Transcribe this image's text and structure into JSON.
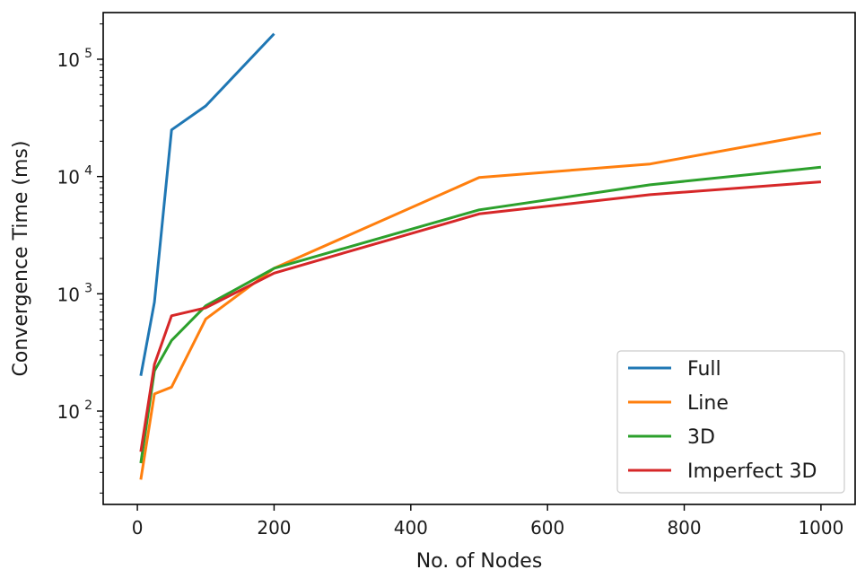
{
  "chart_data": {
    "type": "line",
    "title": "",
    "xlabel": "No. of Nodes",
    "ylabel": "Convergence Time (ms)",
    "xlim": [
      -50,
      1050
    ],
    "ylim": [
      16,
      250000
    ],
    "yscale": "log",
    "grid": false,
    "legend_position": "lower right",
    "x_ticks": [
      0,
      200,
      400,
      600,
      800,
      1000
    ],
    "x_tick_labels": [
      "0",
      "200",
      "400",
      "600",
      "800",
      "1000"
    ],
    "y_ticks": [
      100,
      1000,
      10000,
      100000
    ],
    "y_tick_labels": [
      {
        "base": "10",
        "exp": "2"
      },
      {
        "base": "10",
        "exp": "3"
      },
      {
        "base": "10",
        "exp": "4"
      },
      {
        "base": "10",
        "exp": "5"
      }
    ],
    "series": [
      {
        "name": "Full",
        "color": "#1f77b4",
        "points": [
          [
            5,
            200
          ],
          [
            25,
            850
          ],
          [
            50,
            25000
          ],
          [
            100,
            40000
          ],
          [
            200,
            165000
          ]
        ]
      },
      {
        "name": "Line",
        "color": "#ff7f0e",
        "points": [
          [
            5,
            26
          ],
          [
            25,
            140
          ],
          [
            50,
            160
          ],
          [
            100,
            610
          ],
          [
            200,
            1650
          ],
          [
            500,
            9800
          ],
          [
            750,
            12800
          ],
          [
            1000,
            23500
          ]
        ]
      },
      {
        "name": "3D",
        "color": "#2ca02c",
        "points": [
          [
            5,
            36
          ],
          [
            25,
            220
          ],
          [
            50,
            400
          ],
          [
            100,
            790
          ],
          [
            200,
            1650
          ],
          [
            500,
            5200
          ],
          [
            750,
            8500
          ],
          [
            1000,
            12000
          ]
        ]
      },
      {
        "name": "Imperfect 3D",
        "color": "#d62728",
        "points": [
          [
            5,
            45
          ],
          [
            25,
            250
          ],
          [
            50,
            650
          ],
          [
            100,
            760
          ],
          [
            200,
            1500
          ],
          [
            500,
            4800
          ],
          [
            750,
            7000
          ],
          [
            1000,
            9000
          ]
        ]
      }
    ]
  }
}
